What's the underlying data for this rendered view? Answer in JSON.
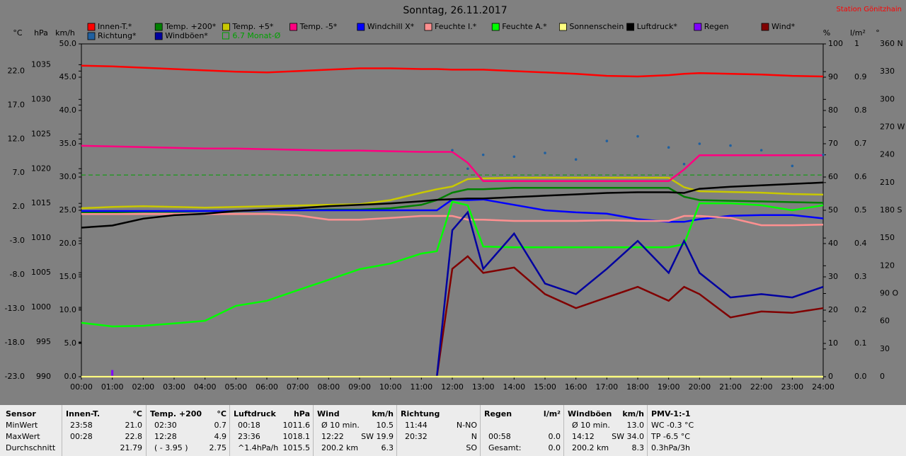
{
  "chart_data": {
    "type": "line",
    "title": "Sonntag, 26.11.2017",
    "station": "Station Gönitzhain",
    "x": [
      0,
      1,
      2,
      3,
      4,
      5,
      6,
      7,
      8,
      9,
      10,
      11,
      11.5,
      12,
      12.5,
      13,
      14,
      15,
      16,
      17,
      18,
      19,
      19.5,
      20,
      21,
      22,
      23,
      24
    ],
    "xlim": [
      0,
      24
    ],
    "xticks": [
      {
        "value": 0,
        "label": "00:00"
      },
      {
        "value": 1,
        "label": "01:00"
      },
      {
        "value": 2,
        "label": "02:00"
      },
      {
        "value": 3,
        "label": "03:00"
      },
      {
        "value": 4,
        "label": "04:00"
      },
      {
        "value": 5,
        "label": "05:00"
      },
      {
        "value": 6,
        "label": "06:00"
      },
      {
        "value": 7,
        "label": "07:00"
      },
      {
        "value": 8,
        "label": "08:00"
      },
      {
        "value": 9,
        "label": "09:00"
      },
      {
        "value": 10,
        "label": "10:00"
      },
      {
        "value": 11,
        "label": "11:00"
      },
      {
        "value": 12,
        "label": "12:00"
      },
      {
        "value": 13,
        "label": "13:00"
      },
      {
        "value": 14,
        "label": "14:00"
      },
      {
        "value": 15,
        "label": "15:00"
      },
      {
        "value": 16,
        "label": "16:00"
      },
      {
        "value": 17,
        "label": "17:00"
      },
      {
        "value": 18,
        "label": "18:00"
      },
      {
        "value": 19,
        "label": "19:00"
      },
      {
        "value": 20,
        "label": "20:00"
      },
      {
        "value": 21,
        "label": "21:00"
      },
      {
        "value": 22,
        "label": "22:00"
      },
      {
        "value": 23,
        "label": "23:00"
      },
      {
        "value": 24,
        "label": "24:00"
      }
    ],
    "axes": [
      {
        "label": "°C",
        "side": "left",
        "lim": [
          -23,
          26
        ],
        "ticks": [
          {
            "value": 22,
            "label": "22.0"
          },
          {
            "value": 17,
            "label": "17.0"
          },
          {
            "value": 12,
            "label": "12.0"
          },
          {
            "value": 7,
            "label": "7.0"
          },
          {
            "value": 2,
            "label": "2.0"
          },
          {
            "value": -3,
            "label": "-3.0"
          },
          {
            "value": -8,
            "label": "-8.0"
          },
          {
            "value": -13,
            "label": "-13.0"
          },
          {
            "value": -18,
            "label": "-18.0"
          },
          {
            "value": -23,
            "label": "-23.0"
          }
        ]
      },
      {
        "label": "hPa",
        "side": "left",
        "lim": [
          990,
          1038
        ],
        "ticks": [
          1035,
          1030,
          1025,
          1020,
          1015,
          1010,
          1005,
          1000,
          995,
          990
        ]
      },
      {
        "label": "km/h",
        "side": "left",
        "lim": [
          0,
          50
        ],
        "ticks": [
          {
            "value": 50,
            "label": "50.0"
          },
          {
            "value": 45,
            "label": "45.0"
          },
          {
            "value": 40,
            "label": "40.0"
          },
          {
            "value": 35,
            "label": "35.0"
          },
          {
            "value": 30,
            "label": "30.0"
          },
          {
            "value": 25,
            "label": "25.0"
          },
          {
            "value": 20,
            "label": "20.0"
          },
          {
            "value": 15,
            "label": "15.0"
          },
          {
            "value": 10,
            "label": "10.0"
          },
          {
            "value": 5,
            "label": "5.0"
          },
          {
            "value": 0,
            "label": "0.0"
          }
        ]
      },
      {
        "label": "%",
        "side": "right",
        "lim": [
          0,
          100
        ],
        "ticks": [
          100,
          90,
          80,
          70,
          60,
          50,
          40,
          30,
          20,
          10,
          0
        ]
      },
      {
        "label": "l/m²",
        "side": "right",
        "lim": [
          0,
          1
        ],
        "ticks": [
          1,
          0.9,
          0.8,
          0.7,
          0.6,
          0.5,
          0.4,
          0.3,
          0.2,
          0.1,
          {
            "value": 0,
            "label": "0.0"
          }
        ]
      },
      {
        "label": "°",
        "side": "right",
        "lim": [
          0,
          360
        ],
        "ticks": [
          {
            "value": 360,
            "label": "360 N"
          },
          330,
          300,
          {
            "value": 270,
            "label": "270 W"
          },
          240,
          210,
          {
            "value": 180,
            "label": "180 S"
          },
          150,
          120,
          {
            "value": 90,
            "label": "90 O"
          },
          60,
          30,
          0
        ]
      }
    ],
    "series": [
      {
        "name": "Innen-T.*",
        "color": "#ff0000",
        "kind": "line",
        "axis": 0,
        "values": [
          22.8,
          22.7,
          22.5,
          22.3,
          22.1,
          21.9,
          21.8,
          22.0,
          22.2,
          22.4,
          22.4,
          22.3,
          22.3,
          22.2,
          22.2,
          22.2,
          22.0,
          21.8,
          21.6,
          21.3,
          21.2,
          21.4,
          21.6,
          21.7,
          21.6,
          21.5,
          21.3,
          21.2
        ]
      },
      {
        "name": "Temp. +200*",
        "color": "#008000",
        "kind": "line",
        "axis": 0,
        "values": [
          1.2,
          1.2,
          1.3,
          1.3,
          1.4,
          1.4,
          1.5,
          1.5,
          1.6,
          1.6,
          1.8,
          2.3,
          3.0,
          4.1,
          4.6,
          4.6,
          4.8,
          4.8,
          4.8,
          4.8,
          4.8,
          4.8,
          3.5,
          3.0,
          2.9,
          2.8,
          2.7,
          2.6
        ]
      },
      {
        "name": "Temp. +5*",
        "color": "#c8c800",
        "kind": "line",
        "axis": 0,
        "values": [
          1.8,
          2.0,
          2.1,
          2.0,
          1.9,
          2.0,
          2.1,
          2.2,
          2.3,
          2.4,
          3.0,
          4.1,
          4.6,
          5.0,
          6.1,
          6.2,
          6.3,
          6.3,
          6.3,
          6.3,
          6.3,
          6.3,
          4.9,
          4.3,
          4.2,
          4.1,
          3.9,
          3.8
        ]
      },
      {
        "name": "Temp. -5*",
        "color": "#ff0080",
        "kind": "line",
        "axis": 0,
        "values": [
          11.0,
          10.9,
          10.8,
          10.7,
          10.6,
          10.6,
          10.5,
          10.4,
          10.3,
          10.3,
          10.2,
          10.1,
          10.1,
          10.1,
          8.5,
          5.8,
          5.8,
          5.8,
          5.8,
          5.8,
          5.8,
          5.8,
          7.5,
          9.6,
          9.6,
          9.6,
          9.6,
          9.6
        ]
      },
      {
        "name": "Windchill X*",
        "color": "#0000ff",
        "kind": "line",
        "axis": 0,
        "values": [
          1.4,
          1.4,
          1.4,
          1.4,
          1.4,
          1.4,
          1.5,
          1.5,
          1.5,
          1.5,
          1.5,
          1.5,
          1.5,
          3.1,
          3.0,
          3.1,
          2.3,
          1.5,
          1.2,
          1.0,
          0.2,
          -0.2,
          -0.2,
          0.2,
          0.7,
          0.8,
          0.8,
          0.3
        ]
      },
      {
        "name": "Feuchte I.*",
        "color": "#ff9090",
        "kind": "line",
        "axis": 3,
        "values": [
          48.9,
          48.9,
          48.9,
          48.9,
          48.9,
          48.9,
          48.9,
          48.5,
          47.2,
          47.2,
          47.7,
          48.3,
          48.3,
          48.3,
          47.2,
          47.2,
          46.8,
          46.8,
          46.8,
          47.0,
          46.8,
          46.8,
          48.3,
          48.3,
          47.7,
          45.5,
          45.5,
          45.7
        ]
      },
      {
        "name": "Feuchte A.*",
        "color": "#00ff00",
        "kind": "line",
        "axis": 3,
        "values": [
          16.2,
          15.1,
          15.3,
          16.0,
          16.8,
          21.3,
          22.8,
          26.0,
          29.1,
          32.3,
          34.0,
          37.0,
          37.7,
          52.6,
          51.5,
          39.1,
          38.9,
          38.9,
          38.9,
          38.9,
          38.9,
          38.9,
          39.8,
          52.1,
          52.1,
          51.5,
          50.0,
          51.5
        ]
      },
      {
        "name": "Sonnenschein",
        "color": "#ffff80",
        "kind": "line",
        "axis": 2,
        "values": [
          0,
          0,
          0,
          0,
          0,
          0,
          0,
          0,
          0,
          0,
          0,
          0,
          0,
          0,
          0,
          0,
          0,
          0,
          0,
          0,
          0,
          0,
          0,
          0,
          0,
          0,
          0,
          0
        ]
      },
      {
        "name": "Luftdruck*",
        "color": "#000000",
        "kind": "line",
        "axis": 1,
        "values": [
          1011.5,
          1011.8,
          1012.8,
          1013.3,
          1013.5,
          1013.9,
          1014.1,
          1014.3,
          1014.6,
          1014.8,
          1015.0,
          1015.3,
          1015.5,
          1015.6,
          1015.7,
          1015.7,
          1015.9,
          1016.1,
          1016.3,
          1016.5,
          1016.6,
          1016.6,
          1016.5,
          1017.1,
          1017.4,
          1017.6,
          1017.8,
          1018.0
        ]
      },
      {
        "name": "Regen",
        "color": "#8000ff",
        "kind": "bar",
        "axis": 4,
        "values": [
          null,
          0.02,
          null,
          null,
          null,
          null,
          null,
          null,
          null,
          null,
          null,
          null,
          null,
          null,
          null,
          null,
          null,
          null,
          null,
          null,
          null,
          null,
          null,
          null,
          null,
          null,
          null,
          null
        ]
      },
      {
        "name": "Wind*",
        "color": "#800000",
        "kind": "line",
        "axis": 2,
        "values": [
          0,
          0,
          0,
          0,
          0,
          0,
          0,
          0,
          0,
          0,
          0,
          0,
          0,
          16.2,
          18.1,
          15.6,
          16.4,
          12.4,
          10.3,
          11.9,
          13.5,
          11.4,
          13.5,
          12.4,
          8.9,
          9.8,
          9.6,
          10.3
        ]
      },
      {
        "name": "Richtung*",
        "color": "#2060a0",
        "kind": "scatter",
        "axis": 5,
        "values": [
          null,
          null,
          null,
          null,
          null,
          null,
          null,
          null,
          null,
          null,
          null,
          null,
          null,
          245,
          225,
          240,
          238,
          242,
          235,
          255,
          260,
          248,
          230,
          252,
          250,
          245,
          228,
          240
        ]
      },
      {
        "name": "Windböen*",
        "color": "#0000a0",
        "kind": "line",
        "axis": 2,
        "values": [
          0,
          0,
          0,
          0,
          0,
          0,
          0,
          0,
          0,
          0,
          0,
          0,
          0,
          22.0,
          24.7,
          16.2,
          21.5,
          14.0,
          12.4,
          16.2,
          20.4,
          15.6,
          20.4,
          15.6,
          11.9,
          12.4,
          11.9,
          13.5
        ]
      }
    ],
    "reference_line": {
      "label": "6.7 Monat-Ø",
      "value": 6.7,
      "axis": 0,
      "color": "#00a000"
    }
  },
  "table": {
    "groups": [
      {
        "cells": [
          [
            "Sensor"
          ],
          [
            "MinWert"
          ],
          [
            "MaxWert"
          ],
          [
            "Durchschnitt"
          ]
        ]
      },
      {
        "cells": [
          [
            "Innen-T.",
            "°C"
          ],
          [
            "23:58",
            "21.0"
          ],
          [
            "00:28",
            "22.8"
          ],
          [
            null,
            "21.79"
          ]
        ]
      },
      {
        "cells": [
          [
            "Temp. +200",
            "°C"
          ],
          [
            "02:30",
            "0.7"
          ],
          [
            "12:28",
            "4.9"
          ],
          [
            "( - 3.95 )",
            "2.75"
          ]
        ]
      },
      {
        "cells": [
          [
            "Luftdruck",
            "hPa"
          ],
          [
            "00:18",
            "1011.6"
          ],
          [
            "23:36",
            "1018.1"
          ],
          [
            "^1.4hPa/h",
            "1015.5"
          ]
        ]
      },
      {
        "cells": [
          [
            "Wind",
            "km/h"
          ],
          [
            "Ø 10 min.",
            "10.5"
          ],
          [
            "12:22",
            "SW 19.9"
          ],
          [
            "200.2 km",
            "6.3"
          ]
        ]
      },
      {
        "cells": [
          [
            "Richtung"
          ],
          [
            "11:44",
            "N-NO"
          ],
          [
            "20:32",
            "N"
          ],
          [
            null,
            "SO"
          ]
        ]
      },
      {
        "cells": [
          [
            "Regen",
            "l/m²"
          ],
          [
            null,
            null
          ],
          [
            "00:58",
            "0.0"
          ],
          [
            "Gesamt:",
            "0.0"
          ]
        ]
      },
      {
        "cells": [
          [
            "Windböen",
            "km/h"
          ],
          [
            "Ø 10 min.",
            "13.0"
          ],
          [
            "14:12",
            "SW 34.0"
          ],
          [
            "200.2 km",
            "8.3"
          ]
        ]
      },
      {
        "cells": [
          [
            "PMV-1:-1"
          ],
          [
            "WC -0.3 °C"
          ],
          [
            "TP -6.5 °C"
          ],
          [
            "0.3hPa/3h"
          ]
        ]
      }
    ]
  }
}
